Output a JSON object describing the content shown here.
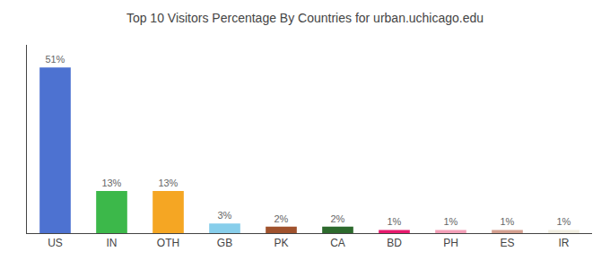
{
  "chart_data": {
    "type": "bar",
    "title": "Top 10 Visitors Percentage By Countries for urban.uchicago.edu",
    "categories": [
      "US",
      "IN",
      "OTH",
      "GB",
      "PK",
      "CA",
      "BD",
      "PH",
      "ES",
      "IR"
    ],
    "values": [
      51,
      13,
      13,
      3,
      2,
      2,
      1,
      1,
      1,
      1
    ],
    "value_labels": [
      "51%",
      "13%",
      "13%",
      "3%",
      "2%",
      "2%",
      "1%",
      "1%",
      "1%",
      "1%"
    ],
    "data_labels": true,
    "colors": [
      "#4d72d1",
      "#3cb84a",
      "#f5a623",
      "#87ceeb",
      "#a0522d",
      "#2d6a2d",
      "#e8196e",
      "#f4a0b8",
      "#d4a090",
      "#f0ede0"
    ],
    "ylim": [
      0,
      58
    ],
    "yticks": [],
    "tick_labels": "x",
    "grid": false
  }
}
